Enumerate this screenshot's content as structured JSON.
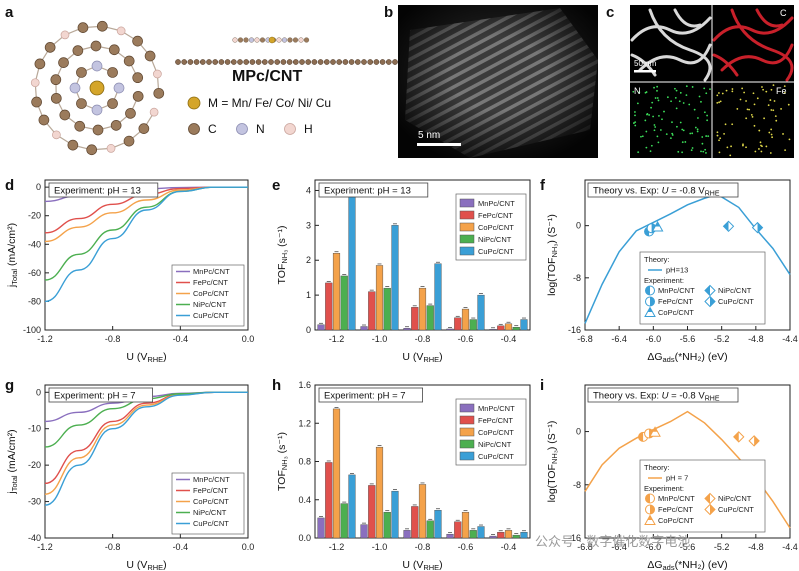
{
  "figure": {
    "labels": {
      "a": "a",
      "b": "b",
      "c": "c",
      "d": "d",
      "e": "e",
      "f": "f",
      "g": "g",
      "h": "h",
      "i": "i"
    },
    "panel_a": {
      "title": "MPc/CNT",
      "legend_m": "M = Mn/ Fe/ Co/ Ni/ Cu",
      "legend_c": "C",
      "legend_n": "N",
      "legend_h": "H"
    },
    "panel_b": {
      "scale": "5 nm"
    },
    "panel_c": {
      "scale": "50 nm",
      "maps": [
        "C",
        "N",
        "Fe"
      ]
    },
    "watermark": "公众号 · 数字催化数字电池",
    "colors": {
      "Mn": "#8a6fbe",
      "Fe": "#e0504c",
      "Co": "#f4a24a",
      "Ni": "#4caf50",
      "Cu": "#3a9fd6"
    }
  },
  "chart_data": [
    {
      "id": "d",
      "type": "line",
      "title": "Experiment: pH = 13",
      "xlabel_main": "U (V",
      "xlabel_sub": "RHE",
      "xlabel_end": ")",
      "ylabel_main": "j",
      "ylabel_sub": "Total",
      "ylabel_end": " (mA/cm²)",
      "xlim": [
        -1.2,
        0.0
      ],
      "ylim": [
        -100,
        5
      ],
      "xticks": [
        "-1.2",
        "-0.8",
        "-0.4",
        "0.0"
      ],
      "yticks": [
        "0",
        "-20",
        "-40",
        "-60",
        "-80",
        "-100"
      ],
      "series": [
        {
          "name": "MnPc/CNT",
          "x": [
            -1.2,
            -1.0,
            -0.8,
            -0.6,
            -0.4,
            -0.2,
            0.0
          ],
          "y": [
            -10,
            -6,
            -3,
            -1.2,
            -0.3,
            0,
            0
          ]
        },
        {
          "name": "FePc/CNT",
          "x": [
            -1.2,
            -1.0,
            -0.8,
            -0.6,
            -0.4,
            -0.2,
            0.0
          ],
          "y": [
            -32,
            -22,
            -12,
            -5,
            -1,
            0,
            0
          ]
        },
        {
          "name": "CoPc/CNT",
          "x": [
            -1.2,
            -1.0,
            -0.8,
            -0.6,
            -0.4,
            -0.2,
            0.0
          ],
          "y": [
            -38,
            -28,
            -18,
            -9,
            -2,
            0,
            0
          ]
        },
        {
          "name": "NiPc/CNT",
          "x": [
            -1.2,
            -1.0,
            -0.8,
            -0.6,
            -0.4,
            -0.2,
            0.0
          ],
          "y": [
            -65,
            -47,
            -30,
            -14,
            -3,
            0,
            0
          ]
        },
        {
          "name": "CuPc/CNT",
          "x": [
            -1.2,
            -1.0,
            -0.8,
            -0.6,
            -0.4,
            -0.2,
            0.0
          ],
          "y": [
            -80,
            -58,
            -36,
            -16,
            -3,
            0,
            0
          ]
        }
      ]
    },
    {
      "id": "e",
      "type": "bar",
      "title": "Experiment: pH = 13",
      "xlabel_main": "U (V",
      "xlabel_sub": "RHE",
      "xlabel_end": ")",
      "ylabel_main": "TOF",
      "ylabel_sub": "NH₃",
      "ylabel_end": " (s⁻¹)",
      "xlim": [
        -1.3,
        -0.3
      ],
      "ylim": [
        0,
        4.3
      ],
      "xticks": [
        "-1.2",
        "-1.0",
        "-0.8",
        "-0.6",
        "-0.4"
      ],
      "yticks": [
        "0",
        "1",
        "2",
        "3",
        "4"
      ],
      "categories": [
        -1.2,
        -1.0,
        -0.8,
        -0.6,
        -0.4
      ],
      "series": [
        {
          "name": "MnPc/CNT",
          "values": [
            0.15,
            0.1,
            0.05,
            0.03,
            0.02
          ]
        },
        {
          "name": "FePc/CNT",
          "values": [
            1.35,
            1.1,
            0.65,
            0.35,
            0.12
          ]
        },
        {
          "name": "CoPc/CNT",
          "values": [
            2.2,
            1.85,
            1.2,
            0.6,
            0.18
          ]
        },
        {
          "name": "NiPc/CNT",
          "values": [
            1.55,
            1.2,
            0.7,
            0.3,
            0.08
          ]
        },
        {
          "name": "CuPc/CNT",
          "values": [
            4.0,
            3.0,
            1.9,
            1.0,
            0.3
          ]
        }
      ]
    },
    {
      "id": "f",
      "type": "line",
      "title_pre": "Theory vs. Exp: ",
      "title_u": "U",
      "title_post": " = -0.8 V",
      "title_sub": "RHE",
      "xlabel_main": "ΔG",
      "xlabel_sub": "ads",
      "xlabel_end": "(*NH₂) (eV)",
      "ylabel_main": "log(TOF",
      "ylabel_sub": "NH₃",
      "ylabel_end": ") (S⁻¹)",
      "xlim": [
        -6.8,
        -4.4
      ],
      "ylim": [
        -16,
        7
      ],
      "xticks": [
        "-6.8",
        "-6.4",
        "-6.0",
        "-5.6",
        "-5.2",
        "-4.8",
        "-4.4"
      ],
      "yticks": [
        "0",
        "-8",
        "-16"
      ],
      "theory_label": "Theory:",
      "theory_name": "pH=13",
      "theory": {
        "x": [
          -6.8,
          -6.6,
          -6.4,
          -6.2,
          -6.0,
          -5.8,
          -5.6,
          -5.4,
          -5.25,
          -5.0,
          -4.8,
          -4.6,
          -4.4
        ],
        "y": [
          -15,
          -9,
          -4,
          -0.8,
          0.5,
          1.8,
          3.2,
          4.2,
          4.8,
          2.8,
          -0.5,
          -3.5,
          -7.5
        ]
      },
      "exp_label": "Experiment:",
      "experiment": [
        {
          "name": "MnPc/CNT",
          "x": -6.05,
          "y": -0.9
        },
        {
          "name": "FePc/CNT",
          "x": -6.02,
          "y": -0.4
        },
        {
          "name": "CoPc/CNT",
          "x": -5.95,
          "y": -0.2
        },
        {
          "name": "NiPc/CNT",
          "x": -5.12,
          "y": -0.1
        },
        {
          "name": "CuPc/CNT",
          "x": -4.78,
          "y": -0.3
        }
      ]
    },
    {
      "id": "g",
      "type": "line",
      "title": "Experiment: pH = 7",
      "xlabel_main": "U (V",
      "xlabel_sub": "RHE",
      "xlabel_end": ")",
      "ylabel_main": "j",
      "ylabel_sub": "Total",
      "ylabel_end": " (mA/cm²)",
      "xlim": [
        -1.2,
        0.0
      ],
      "ylim": [
        -40,
        2
      ],
      "xticks": [
        "-1.2",
        "-0.8",
        "-0.4",
        "0.0"
      ],
      "yticks": [
        "0",
        "-10",
        "-20",
        "-30",
        "-40"
      ],
      "series": [
        {
          "name": "MnPc/CNT",
          "x": [
            -1.2,
            -1.0,
            -0.8,
            -0.6,
            -0.4,
            -0.2,
            0.0
          ],
          "y": [
            -8,
            -5.5,
            -3,
            -1.2,
            -0.3,
            0,
            0
          ]
        },
        {
          "name": "FePc/CNT",
          "x": [
            -1.2,
            -1.0,
            -0.8,
            -0.6,
            -0.4,
            -0.2,
            0.0
          ],
          "y": [
            -25,
            -16,
            -8,
            -3,
            -0.6,
            0,
            0
          ]
        },
        {
          "name": "CoPc/CNT",
          "x": [
            -1.2,
            -1.0,
            -0.8,
            -0.6,
            -0.4,
            -0.2,
            0.0
          ],
          "y": [
            -28,
            -18,
            -9,
            -3.5,
            -0.7,
            0,
            0
          ]
        },
        {
          "name": "NiPc/CNT",
          "x": [
            -1.2,
            -1.0,
            -0.8,
            -0.6,
            -0.4,
            -0.2,
            0.0
          ],
          "y": [
            -15,
            -9,
            -4.5,
            -1.8,
            -0.4,
            0,
            0
          ]
        },
        {
          "name": "CuPc/CNT",
          "x": [
            -1.2,
            -1.0,
            -0.8,
            -0.6,
            -0.4,
            -0.2,
            0.0
          ],
          "y": [
            -31,
            -20,
            -10,
            -4,
            -0.8,
            0,
            0
          ]
        }
      ]
    },
    {
      "id": "h",
      "type": "bar",
      "title": "Experiment: pH = 7",
      "xlabel_main": "U (V",
      "xlabel_sub": "RHE",
      "xlabel_end": ")",
      "ylabel_main": "TOF",
      "ylabel_sub": "NH₃",
      "ylabel_end": " (s⁻¹)",
      "xlim": [
        -1.3,
        -0.3
      ],
      "ylim": [
        0,
        1.6
      ],
      "xticks": [
        "-1.2",
        "-1.0",
        "-0.8",
        "-0.6",
        "-0.4"
      ],
      "yticks": [
        "0.0",
        "0.4",
        "0.8",
        "1.2",
        "1.6"
      ],
      "categories": [
        -1.2,
        -1.0,
        -0.8,
        -0.6,
        -0.4
      ],
      "series": [
        {
          "name": "MnPc/CNT",
          "values": [
            0.21,
            0.14,
            0.08,
            0.04,
            0.02
          ]
        },
        {
          "name": "FePc/CNT",
          "values": [
            0.79,
            0.55,
            0.33,
            0.17,
            0.06
          ]
        },
        {
          "name": "CoPc/CNT",
          "values": [
            1.35,
            0.95,
            0.56,
            0.27,
            0.08
          ]
        },
        {
          "name": "NiPc/CNT",
          "values": [
            0.36,
            0.27,
            0.18,
            0.08,
            0.03
          ]
        },
        {
          "name": "CuPc/CNT",
          "values": [
            0.66,
            0.49,
            0.29,
            0.12,
            0.06
          ]
        }
      ]
    },
    {
      "id": "i",
      "type": "line",
      "title_pre": "Theory vs. Exp: ",
      "title_u": "U",
      "title_post": " = -0.8 V",
      "title_sub": "RHE",
      "xlabel_main": "ΔG",
      "xlabel_sub": "ads",
      "xlabel_end": "(*NH₂) (eV)",
      "ylabel_main": "log(TOF",
      "ylabel_sub": "NH₃",
      "ylabel_end": ") (S⁻¹)",
      "xlim": [
        -6.8,
        -4.4
      ],
      "ylim": [
        -16,
        7
      ],
      "xticks": [
        "-6.8",
        "-6.4",
        "-6.0",
        "-5.6",
        "-5.2",
        "-4.8",
        "-4.4"
      ],
      "yticks": [
        "0",
        "-8",
        "-16"
      ],
      "theory_label": "Theory:",
      "theory_name": "pH = 7",
      "theory": {
        "x": [
          -6.8,
          -6.6,
          -6.4,
          -6.2,
          -6.0,
          -5.8,
          -5.6,
          -5.4,
          -5.2,
          -5.0,
          -4.8,
          -4.6,
          -4.4
        ],
        "y": [
          -9,
          -5,
          -2.5,
          -1,
          0.3,
          1.5,
          3.0,
          1.3,
          -1.2,
          -4,
          -7,
          -10.5,
          -14.5
        ]
      },
      "exp_label": "Experiment:",
      "experiment": [
        {
          "name": "MnPc/CNT",
          "x": -6.12,
          "y": -0.8
        },
        {
          "name": "FePc/CNT",
          "x": -6.05,
          "y": -0.3
        },
        {
          "name": "CoPc/CNT",
          "x": -5.98,
          "y": -0.1
        },
        {
          "name": "NiPc/CNT",
          "x": -5.0,
          "y": -0.8
        },
        {
          "name": "CuPc/CNT",
          "x": -4.82,
          "y": -1.4
        }
      ]
    }
  ]
}
